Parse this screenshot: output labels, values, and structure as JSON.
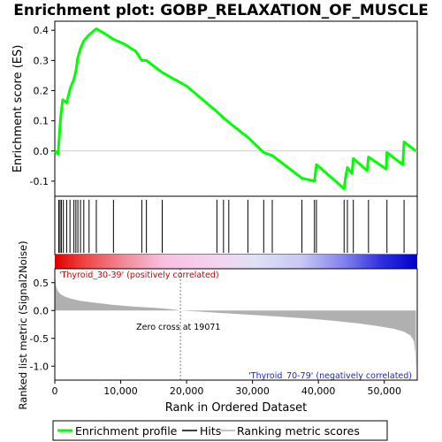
{
  "title": "Enrichment plot: GOBP_RELAXATION_OF_MUSCLE",
  "colors": {
    "es_line": "#00ff00",
    "hits": "#000000",
    "metric_fill": "#b0b0b0",
    "positive_label": "#cc0000",
    "negative_label": "#2222cc",
    "zero_line": "#808080"
  },
  "chart_data": [
    {
      "type": "line",
      "name": "enrichment-profile",
      "ylabel": "Enrichment score (ES)",
      "xlim": [
        0,
        55000
      ],
      "ylim": [
        -0.15,
        0.43
      ],
      "yticks": [
        -0.1,
        0.0,
        0.1,
        0.2,
        0.3,
        0.4
      ],
      "ytick_labels": [
        "-0.1",
        "0.0",
        "0.1",
        "0.2",
        "0.3",
        "0.4"
      ],
      "x": [
        0,
        500,
        700,
        900,
        1200,
        1800,
        2300,
        2900,
        3200,
        3500,
        3900,
        4400,
        5200,
        6300,
        7500,
        8900,
        10500,
        12300,
        13200,
        13900,
        16300,
        20000,
        24600,
        25600,
        26400,
        29300,
        31700,
        33000,
        37500,
        39400,
        39700,
        43900,
        44100,
        44400,
        45100,
        45300,
        47400,
        47600,
        50300,
        50400,
        52800,
        53000,
        54800
      ],
      "y": [
        0.0,
        -0.01,
        0.055,
        0.115,
        0.17,
        0.16,
        0.205,
        0.238,
        0.265,
        0.31,
        0.34,
        0.365,
        0.385,
        0.405,
        0.39,
        0.37,
        0.355,
        0.33,
        0.3,
        0.3,
        0.26,
        0.215,
        0.13,
        0.11,
        0.095,
        0.045,
        -0.005,
        -0.015,
        -0.09,
        -0.1,
        -0.045,
        -0.125,
        -0.09,
        -0.055,
        -0.075,
        -0.025,
        -0.065,
        -0.02,
        -0.06,
        -0.005,
        -0.045,
        0.03,
        0.0
      ]
    },
    {
      "type": "scatter",
      "name": "hits",
      "x": [
        600,
        800,
        1000,
        1300,
        1800,
        2300,
        2900,
        3200,
        3500,
        3900,
        4400,
        5200,
        6300,
        8900,
        13200,
        13900,
        16300,
        24600,
        25600,
        26400,
        29300,
        31700,
        33000,
        37500,
        39400,
        39700,
        43900,
        44400,
        45300,
        47600,
        50400,
        53000
      ]
    },
    {
      "type": "area",
      "name": "ranked-list-metric",
      "xlabel": "Rank in Ordered Dataset",
      "ylabel": "Ranked list metric (Signal2Noise)",
      "xlim": [
        0,
        55000
      ],
      "ylim": [
        -1.25,
        0.75
      ],
      "xticks": [
        0,
        10000,
        20000,
        30000,
        40000,
        50000
      ],
      "xtick_labels": [
        "0",
        "10,000",
        "20,000",
        "30,000",
        "40,000",
        "50,000"
      ],
      "yticks": [
        -1.0,
        -0.5,
        0.0,
        0.5
      ],
      "ytick_labels": [
        "-1.0",
        "-0.5",
        "0.0",
        "0.5"
      ],
      "x": [
        0,
        150,
        400,
        800,
        1500,
        2500,
        4000,
        6000,
        9000,
        12000,
        15000,
        17500,
        19071,
        22000,
        26000,
        30000,
        34000,
        38000,
        42000,
        46000,
        49000,
        51500,
        53000,
        54000,
        54500,
        54700,
        54800
      ],
      "y": [
        0.7,
        0.45,
        0.36,
        0.3,
        0.25,
        0.21,
        0.17,
        0.14,
        0.1,
        0.07,
        0.05,
        0.025,
        0.0,
        -0.02,
        -0.05,
        -0.08,
        -0.11,
        -0.14,
        -0.18,
        -0.23,
        -0.28,
        -0.33,
        -0.38,
        -0.45,
        -0.55,
        -0.75,
        -1.1
      ]
    }
  ],
  "annotations": {
    "zero_cross": "Zero cross at 19071",
    "zero_cross_rank": 19071,
    "positive_label": "'Thyroid_30-39' (positively correlated)",
    "negative_label": "'Thyroid_70-79' (negatively correlated)"
  },
  "legend": {
    "placement": "bottom",
    "items": [
      {
        "label": "Enrichment profile",
        "color": "#00ff00"
      },
      {
        "label": "Hits",
        "color": "#000000"
      },
      {
        "label": "Ranking metric scores",
        "color": "#b0b0b0"
      }
    ]
  }
}
